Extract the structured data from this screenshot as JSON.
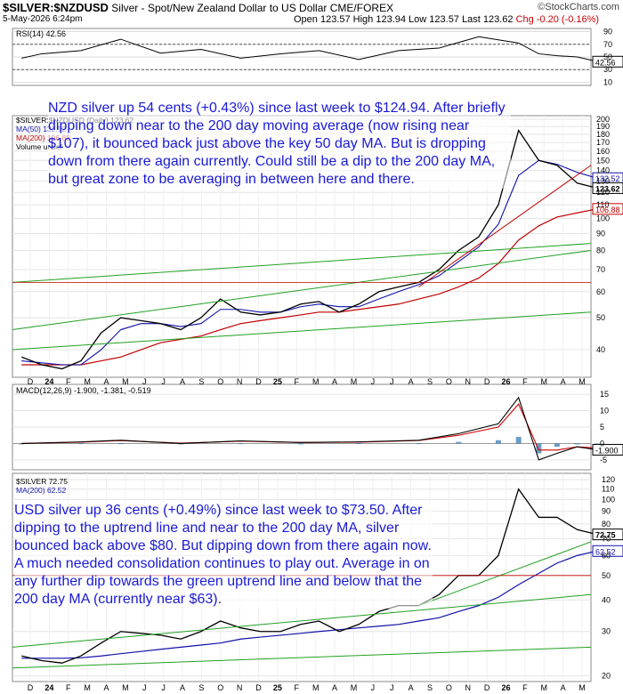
{
  "header": {
    "symbol": "$SILVER:$NZDUSD",
    "description": "Silver - Spot/New Zealand Dollar to US Dollar",
    "exchange": "CME/FOREX",
    "date": "5-May-2026 6:24pm",
    "ohlc": "Open 123.57  High 123.94  Low 123.57  Last 123.62",
    "change": "Chg -0.20 (-0.16%)",
    "logo": "©StockCharts.com",
    "logo_color": "#5a5a5a"
  },
  "colors": {
    "price_up": "#000000",
    "price_down": "#c00000",
    "ma50": "#1010aa",
    "ma200": "#c00000",
    "trendlines": "#22a022",
    "annotation": "#1a1ad6",
    "macd_line": "#000000",
    "macd_signal": "#d00000",
    "histogram": "#2b73b0",
    "rsi_fill": "#3a7a3a"
  },
  "annotations": {
    "nzd": "NZD silver up 54 cents (+0.43%) since last week to $124.94. After briefly dipping down near to the 200 day moving average (now rising near $107), it bounced back just above the key 50 day MA. But is dropping down from there again currently. Could still be a dip to the 200 day MA, but great zone to be averaging in between here and there.",
    "usd": "USD silver up 36 cents (+0.49%) since last week to $73.50. After dipping to the uptrend line and near to the 200 day MA, silver bounced back above $80. But dipping down from there again now. A much needed consolidation continues to play out. Average in on any further dip towards the green uptrend line and below that the 200 day MA (currently near $63)."
  },
  "chart_data": [
    {
      "type": "line",
      "panel": "rsi",
      "legend": "RSI(14) 42.56",
      "last": "42.56",
      "levels": [
        30,
        70
      ],
      "tick_labels": [
        "90",
        "70",
        "50",
        "30",
        "10"
      ],
      "x": [
        "2023-12",
        "2024-01",
        "2024-03",
        "2024-05",
        "2024-07",
        "2024-09",
        "2024-11",
        "2025-01",
        "2025-03",
        "2025-05",
        "2025-07",
        "2025-09",
        "2025-11",
        "2026-01",
        "2026-02",
        "2026-03",
        "2026-04",
        "2026-05"
      ],
      "y": [
        48,
        55,
        60,
        78,
        56,
        62,
        48,
        55,
        60,
        46,
        60,
        64,
        82,
        72,
        55,
        52,
        50,
        43
      ]
    },
    {
      "type": "line",
      "panel": "nzd_price",
      "legend": [
        "$SILVER:$NZDUSD (Daily) 123.62",
        "MA(50) 132.52",
        "MA(200) 106.88",
        "Volume undef"
      ],
      "y_scale": "log",
      "tick_labels": [
        "200",
        "190",
        "180",
        "170",
        "160",
        "150",
        "140",
        "130",
        "120",
        "110",
        "100",
        "90",
        "80",
        "70",
        "60",
        "50",
        "40"
      ],
      "price_labels": {
        "last": "123.62",
        "ma50": "132.52",
        "ma200": "106.88"
      },
      "x": [
        "2023-12",
        "2024-01",
        "2024-02",
        "2024-03",
        "2024-04",
        "2024-05",
        "2024-06",
        "2024-07",
        "2024-08",
        "2024-09",
        "2024-10",
        "2024-11",
        "2024-12",
        "2025-01",
        "2025-02",
        "2025-03",
        "2025-04",
        "2025-05",
        "2025-06",
        "2025-07",
        "2025-08",
        "2025-09",
        "2025-10",
        "2025-11",
        "2025-12",
        "2026-01",
        "2026-02",
        "2026-03",
        "2026-04",
        "2026-05"
      ],
      "series": [
        {
          "name": "$SILVER:$NZDUSD",
          "values": [
            38,
            36,
            35,
            37,
            45,
            50,
            49,
            48,
            46,
            50,
            57,
            52,
            51,
            52,
            55,
            56,
            52,
            55,
            60,
            62,
            64,
            70,
            80,
            88,
            110,
            185,
            150,
            145,
            128,
            123.62
          ]
        },
        {
          "name": "MA(50)",
          "values": [
            37,
            36.5,
            36,
            36,
            40,
            46,
            48,
            48,
            47,
            48,
            53,
            53,
            52,
            52,
            54,
            55,
            54,
            54,
            57,
            60,
            63,
            67,
            74,
            82,
            96,
            135,
            150,
            146,
            138,
            132.52
          ]
        },
        {
          "name": "MA(200)",
          "values": [
            36,
            36,
            36,
            36,
            37,
            38,
            40,
            42,
            43,
            44,
            46,
            48,
            49,
            50,
            51,
            52,
            52,
            53,
            54,
            55,
            57,
            59,
            62,
            66,
            73,
            86,
            95,
            101,
            104,
            106.88
          ]
        }
      ]
    },
    {
      "type": "line",
      "panel": "macd",
      "legend": "MACD(12,26,9) -1.900, -1.381, -0.519",
      "tick_labels": [
        "15",
        "10",
        "5",
        "0",
        "-5"
      ],
      "last": "-1.900",
      "x": [
        "2023-12",
        "2024-03",
        "2024-05",
        "2024-08",
        "2024-11",
        "2025-02",
        "2025-05",
        "2025-08",
        "2025-10",
        "2025-12",
        "2026-01",
        "2026-02",
        "2026-03",
        "2026-04",
        "2026-05"
      ],
      "series": [
        {
          "name": "MACD",
          "values": [
            0,
            0.5,
            1,
            0,
            0.8,
            0.3,
            0.5,
            1,
            3,
            6,
            14,
            -5,
            -3,
            -1,
            -1.9
          ]
        },
        {
          "name": "Signal",
          "values": [
            0,
            0.4,
            0.9,
            0.1,
            0.7,
            0.3,
            0.4,
            0.9,
            2.5,
            5,
            12,
            -2,
            -2,
            -1,
            -1.381
          ]
        }
      ]
    },
    {
      "type": "line",
      "panel": "usd_price",
      "legend": [
        "$SILVER 72.75",
        "MA(200) 62.52"
      ],
      "y_scale": "log",
      "tick_labels": [
        "120",
        "110",
        "100",
        "90",
        "80",
        "70",
        "60",
        "50",
        "40",
        "30",
        "20"
      ],
      "price_labels": {
        "last": "72.75",
        "ma200": "62.52"
      },
      "x": [
        "2023-12",
        "2024-01",
        "2024-02",
        "2024-03",
        "2024-04",
        "2024-05",
        "2024-06",
        "2024-07",
        "2024-08",
        "2024-09",
        "2024-10",
        "2024-11",
        "2024-12",
        "2025-01",
        "2025-02",
        "2025-03",
        "2025-04",
        "2025-05",
        "2025-06",
        "2025-07",
        "2025-08",
        "2025-09",
        "2025-10",
        "2025-11",
        "2025-12",
        "2026-01",
        "2026-02",
        "2026-03",
        "2026-04",
        "2026-05"
      ],
      "series": [
        {
          "name": "$SILVER",
          "values": [
            24,
            23,
            22.5,
            24,
            27,
            30,
            29.5,
            29,
            28,
            30,
            33,
            31,
            30,
            30,
            32,
            33,
            30,
            32,
            36,
            38,
            38,
            42,
            50,
            50,
            60,
            110,
            85,
            85,
            76,
            72.75
          ]
        },
        {
          "name": "MA(200)",
          "values": [
            23.5,
            23.5,
            23.5,
            23.6,
            24,
            24.5,
            25,
            25.5,
            26,
            26.5,
            27,
            28,
            28.5,
            29,
            29.5,
            30,
            30.5,
            31,
            31.5,
            32,
            33,
            34,
            36,
            38,
            41,
            46,
            51,
            56,
            60,
            62.52
          ]
        }
      ]
    }
  ],
  "x_axis_labels": [
    "D",
    "24",
    "F",
    "M",
    "A",
    "M",
    "J",
    "J",
    "A",
    "S",
    "O",
    "N",
    "D",
    "25",
    "F",
    "M",
    "A",
    "M",
    "J",
    "J",
    "A",
    "S",
    "O",
    "N",
    "D",
    "26",
    "F",
    "M",
    "A",
    "M"
  ]
}
